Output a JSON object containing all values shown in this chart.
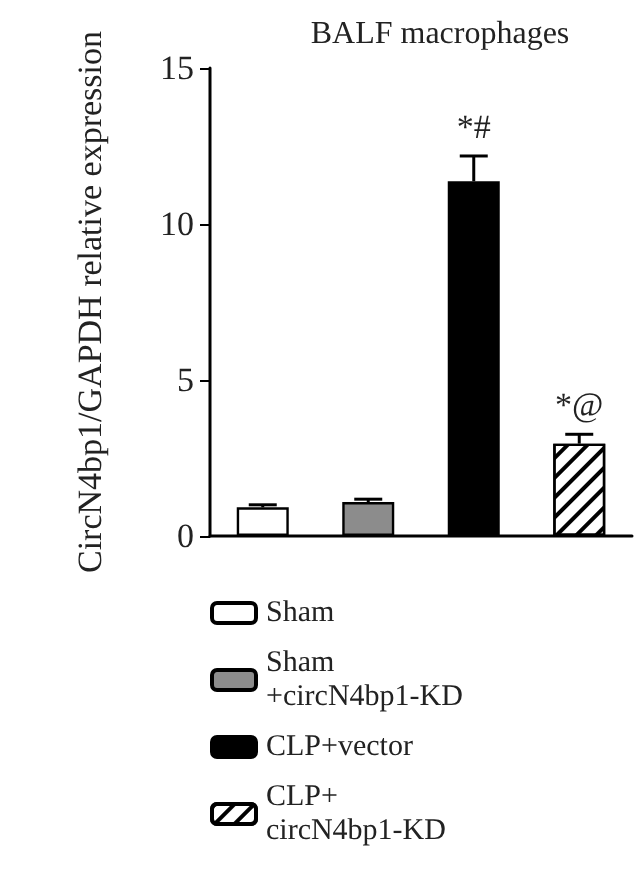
{
  "chart_data": {
    "type": "bar",
    "title": "BALF macrophages",
    "ylabel": "CircN4bp1/GAPDH relative expression",
    "categories": [
      null,
      null,
      null,
      null
    ],
    "series": [
      {
        "name": "Sham",
        "color": "#ffffff",
        "values": [
          0.92,
          null,
          null,
          null
        ],
        "errors": [
          0.08,
          null,
          null,
          null
        ]
      },
      {
        "name": "Sham +circN4bp1-KD",
        "color": "#8c8c8c",
        "values": [
          null,
          1.09,
          null,
          null
        ],
        "errors": [
          null,
          0.09,
          null,
          null
        ]
      },
      {
        "name": "CLP+vector",
        "color": "#000000",
        "values": [
          null,
          null,
          11.37,
          null
        ],
        "errors": [
          null,
          null,
          0.81,
          null
        ],
        "value_labels": [
          null,
          null,
          "*#",
          null
        ]
      },
      {
        "name": "CLP+ circN4bp1-KD",
        "color": "#ffffff",
        "values": [
          null,
          null,
          null,
          2.96
        ],
        "errors": [
          null,
          null,
          null,
          0.3
        ],
        "value_labels": [
          null,
          null,
          null,
          "*@"
        ]
      }
    ],
    "ylim": [
      0,
      15
    ],
    "yticks": [
      0,
      5,
      10,
      15
    ],
    "grid": false,
    "legend": "bottom"
  }
}
